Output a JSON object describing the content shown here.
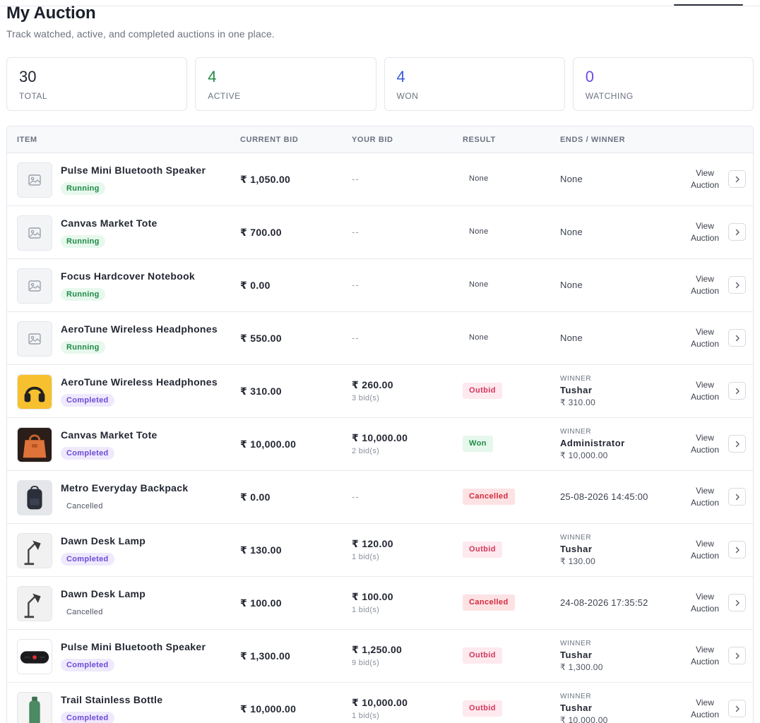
{
  "header": {
    "title": "My Auction",
    "subtitle": "Track watched, active, and completed auctions in one place."
  },
  "stats": [
    {
      "value": "30",
      "label": "TOTAL",
      "color": "#1f2430"
    },
    {
      "value": "4",
      "label": "ACTIVE",
      "color": "#1f8a45"
    },
    {
      "value": "4",
      "label": "WON",
      "color": "#3b5bdb"
    },
    {
      "value": "0",
      "label": "WATCHING",
      "color": "#7048e8"
    }
  ],
  "table": {
    "columns": [
      "ITEM",
      "CURRENT BID",
      "YOUR BID",
      "RESULT",
      "ENDS / WINNER"
    ],
    "rows": [
      {
        "name": "Pulse Mini Bluetooth Speaker",
        "status": "Running",
        "status_type": "running",
        "current_bid": "₹ 1,050.00",
        "your_bid": "--",
        "bid_count": "",
        "result": "None",
        "result_type": "plain",
        "ends": "None",
        "winner_label": "",
        "winner_name": "",
        "winner_price": "",
        "thumb": "image-placeholder-icon",
        "view": "View Auction"
      },
      {
        "name": "Canvas Market Tote",
        "status": "Running",
        "status_type": "running",
        "current_bid": "₹ 700.00",
        "your_bid": "--",
        "bid_count": "",
        "result": "None",
        "result_type": "plain",
        "ends": "None",
        "winner_label": "",
        "winner_name": "",
        "winner_price": "",
        "thumb": "image-placeholder-icon",
        "view": "View Auction"
      },
      {
        "name": "Focus Hardcover Notebook",
        "status": "Running",
        "status_type": "running",
        "current_bid": "₹ 0.00",
        "your_bid": "--",
        "bid_count": "",
        "result": "None",
        "result_type": "plain",
        "ends": "None",
        "winner_label": "",
        "winner_name": "",
        "winner_price": "",
        "thumb": "image-placeholder-icon",
        "view": "View Auction"
      },
      {
        "name": "AeroTune Wireless Headphones",
        "status": "Running",
        "status_type": "running",
        "current_bid": "₹ 550.00",
        "your_bid": "--",
        "bid_count": "",
        "result": "None",
        "result_type": "plain",
        "ends": "None",
        "winner_label": "",
        "winner_name": "",
        "winner_price": "",
        "thumb": "image-placeholder-icon",
        "view": "View Auction"
      },
      {
        "name": "AeroTune Wireless Headphones",
        "status": "Completed",
        "status_type": "completed",
        "current_bid": "₹ 310.00",
        "your_bid": "₹ 260.00",
        "bid_count": "3 bid(s)",
        "result": "Outbid",
        "result_type": "outbid",
        "ends": "",
        "winner_label": "WINNER",
        "winner_name": "Tushar",
        "winner_price": "₹ 310.00",
        "thumb": "headphones-photo",
        "view": "View Auction"
      },
      {
        "name": "Canvas Market Tote",
        "status": "Completed",
        "status_type": "completed",
        "current_bid": "₹ 10,000.00",
        "your_bid": "₹ 10,000.00",
        "bid_count": "2 bid(s)",
        "result": "Won",
        "result_type": "won",
        "ends": "",
        "winner_label": "WINNER",
        "winner_name": "Administrator",
        "winner_price": "₹ 10,000.00",
        "thumb": "tote-bag-photo",
        "view": "View Auction"
      },
      {
        "name": "Metro Everyday Backpack",
        "status": "Cancelled",
        "status_type": "cancelled",
        "current_bid": "₹ 0.00",
        "your_bid": "--",
        "bid_count": "",
        "result": "Cancelled",
        "result_type": "cancelled",
        "ends": "25-08-2026 14:45:00",
        "winner_label": "",
        "winner_name": "",
        "winner_price": "",
        "thumb": "backpack-photo",
        "view": "View Auction"
      },
      {
        "name": "Dawn Desk Lamp",
        "status": "Completed",
        "status_type": "completed",
        "current_bid": "₹ 130.00",
        "your_bid": "₹ 120.00",
        "bid_count": "1 bid(s)",
        "result": "Outbid",
        "result_type": "outbid",
        "ends": "",
        "winner_label": "WINNER",
        "winner_name": "Tushar",
        "winner_price": "₹ 130.00",
        "thumb": "desk-lamp-photo",
        "view": "View Auction"
      },
      {
        "name": "Dawn Desk Lamp",
        "status": "Cancelled",
        "status_type": "cancelled",
        "current_bid": "₹ 100.00",
        "your_bid": "₹ 100.00",
        "bid_count": "1 bid(s)",
        "result": "Cancelled",
        "result_type": "cancelled",
        "ends": "24-08-2026 17:35:52",
        "winner_label": "",
        "winner_name": "",
        "winner_price": "",
        "thumb": "desk-lamp-photo",
        "view": "View Auction"
      },
      {
        "name": "Pulse Mini Bluetooth Speaker",
        "status": "Completed",
        "status_type": "completed",
        "current_bid": "₹ 1,300.00",
        "your_bid": "₹ 1,250.00",
        "bid_count": "9 bid(s)",
        "result": "Outbid",
        "result_type": "outbid",
        "ends": "",
        "winner_label": "WINNER",
        "winner_name": "Tushar",
        "winner_price": "₹ 1,300.00",
        "thumb": "speaker-photo",
        "view": "View Auction"
      },
      {
        "name": "Trail Stainless Bottle",
        "status": "Completed",
        "status_type": "completed",
        "current_bid": "₹ 10,000.00",
        "your_bid": "₹ 10,000.00",
        "bid_count": "1 bid(s)",
        "result": "Outbid",
        "result_type": "outbid",
        "ends": "",
        "winner_label": "WINNER",
        "winner_name": "Tushar",
        "winner_price": "₹ 10,000.00",
        "thumb": "bottle-photo",
        "view": "View Auction"
      }
    ]
  }
}
